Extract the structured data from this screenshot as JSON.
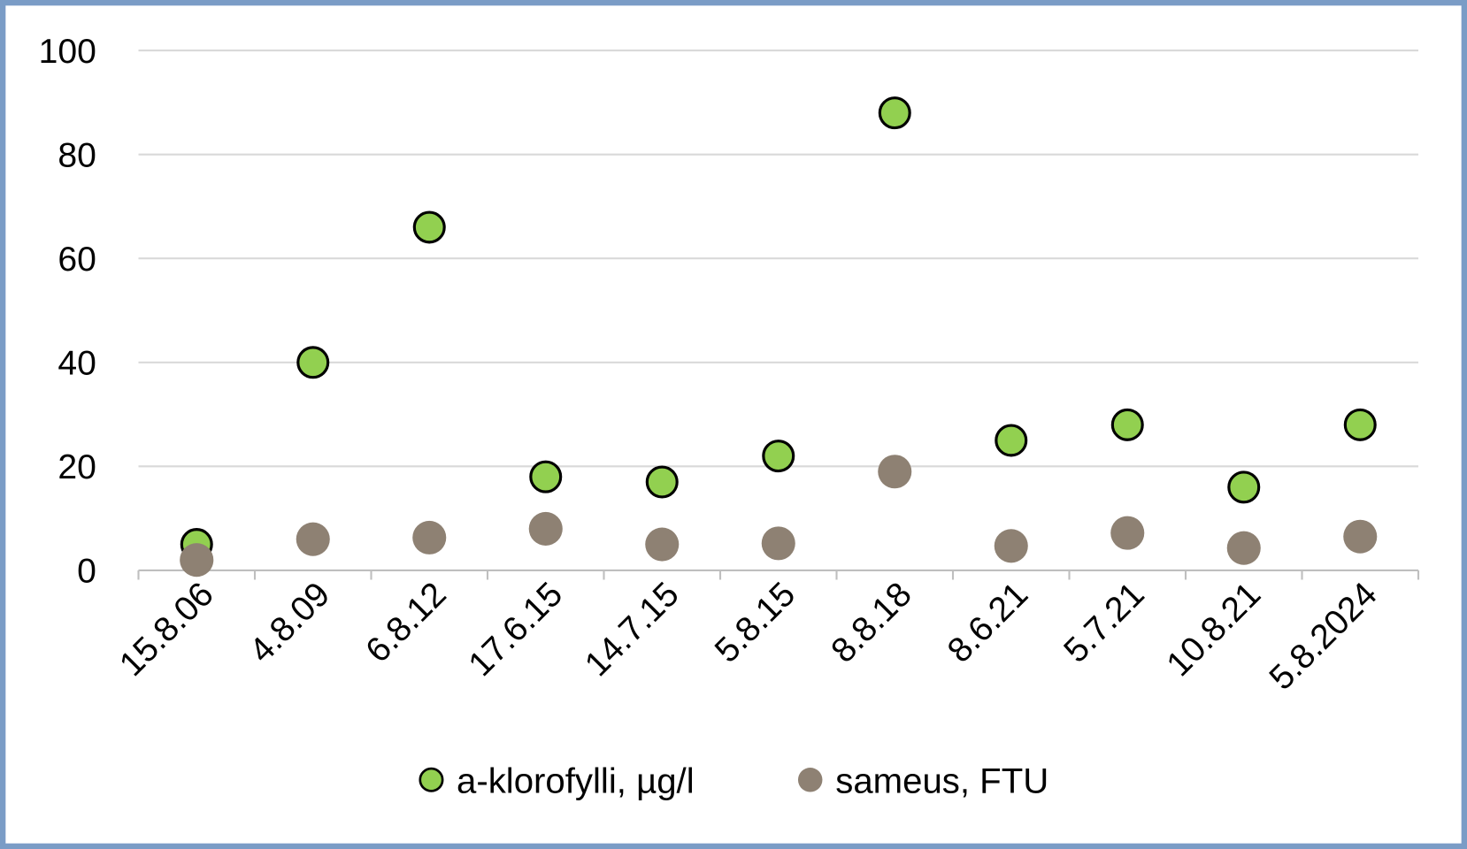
{
  "chart_data": {
    "type": "scatter",
    "title": "",
    "xlabel": "",
    "ylabel": "",
    "ylim": [
      0,
      100
    ],
    "yticks": [
      "0",
      "20",
      "40",
      "60",
      "80",
      "100"
    ],
    "grid": true,
    "legend_position": "bottom",
    "categories": [
      "15.8.06",
      "4.8.09",
      "6.8.12",
      "17.6.15",
      "14.7.15",
      "5.8.15",
      "8.8.18",
      "8.6.21",
      "5.7.21",
      "10.8.21",
      "5.8.2024"
    ],
    "series": [
      {
        "name": "a-klorofylli, µg/l",
        "color": "#92D050",
        "outline": "#000000",
        "values": [
          5,
          40,
          66,
          18,
          17,
          22,
          88,
          25,
          28,
          16,
          28
        ]
      },
      {
        "name": "sameus, FTU",
        "color": "#8E8173",
        "values": [
          2,
          6,
          6.3,
          8,
          5,
          5.2,
          19,
          4.7,
          7.2,
          4.3,
          6.5
        ]
      }
    ],
    "border_color": "#7A9CC6"
  }
}
